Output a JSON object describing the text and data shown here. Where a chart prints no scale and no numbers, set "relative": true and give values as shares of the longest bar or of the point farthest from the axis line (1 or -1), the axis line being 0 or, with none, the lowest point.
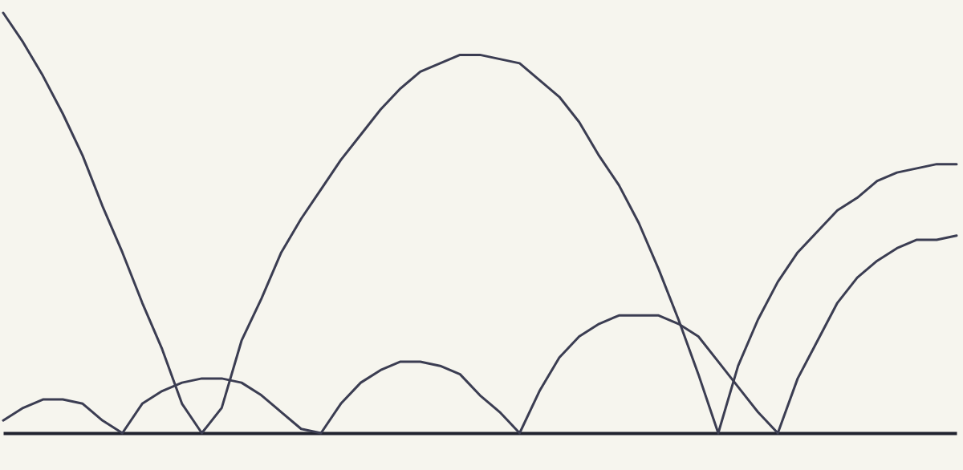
{
  "chart_data": {
    "type": "line",
    "relative": true,
    "grid": false,
    "tick_labels": false,
    "categories": [
      null,
      null,
      null,
      null,
      null,
      null,
      null,
      null,
      null,
      null,
      null,
      null,
      null,
      null,
      null,
      null,
      null,
      null,
      null,
      null,
      null,
      null,
      null,
      null,
      null,
      null,
      null,
      null,
      null,
      null,
      null,
      null,
      null,
      null,
      null,
      null,
      null,
      null,
      null,
      null,
      null,
      null,
      null,
      null,
      null,
      null,
      null,
      null,
      null
    ],
    "series": [
      {
        "color": "#3b3d52",
        "values": [
          1.0,
          0.93,
          0.85,
          0.76,
          0.66,
          0.54,
          0.43,
          0.31,
          0.2,
          0.07,
          0.0,
          0.06,
          0.22,
          0.32,
          0.43,
          0.51,
          0.58,
          0.65,
          0.71,
          0.77,
          0.82,
          0.86,
          0.88,
          0.9,
          0.9,
          0.89,
          0.88,
          0.84,
          0.8,
          0.74,
          0.66,
          0.59,
          0.5,
          0.39,
          0.27,
          0.14,
          0.0,
          0.16,
          0.27,
          0.36,
          0.43,
          0.48,
          0.53,
          0.56,
          0.6,
          0.62,
          0.63,
          0.64,
          0.64
        ]
      },
      {
        "color": "#3b3d52",
        "values": [
          0.03,
          0.06,
          0.08,
          0.08,
          0.07,
          0.03,
          0.0,
          0.07,
          0.1,
          0.12,
          0.13,
          0.13,
          0.12,
          0.09,
          0.05,
          0.01,
          0.0,
          0.07,
          0.12,
          0.15,
          0.17,
          0.17,
          0.16,
          0.14,
          0.09,
          0.05,
          0.0,
          0.1,
          0.18,
          0.23,
          0.26,
          0.28,
          0.28,
          0.28,
          0.26,
          0.23,
          0.17,
          0.11,
          0.05,
          0.0,
          0.13,
          0.22,
          0.31,
          0.37,
          0.41,
          0.44,
          0.46,
          0.46,
          0.47
        ]
      }
    ]
  }
}
